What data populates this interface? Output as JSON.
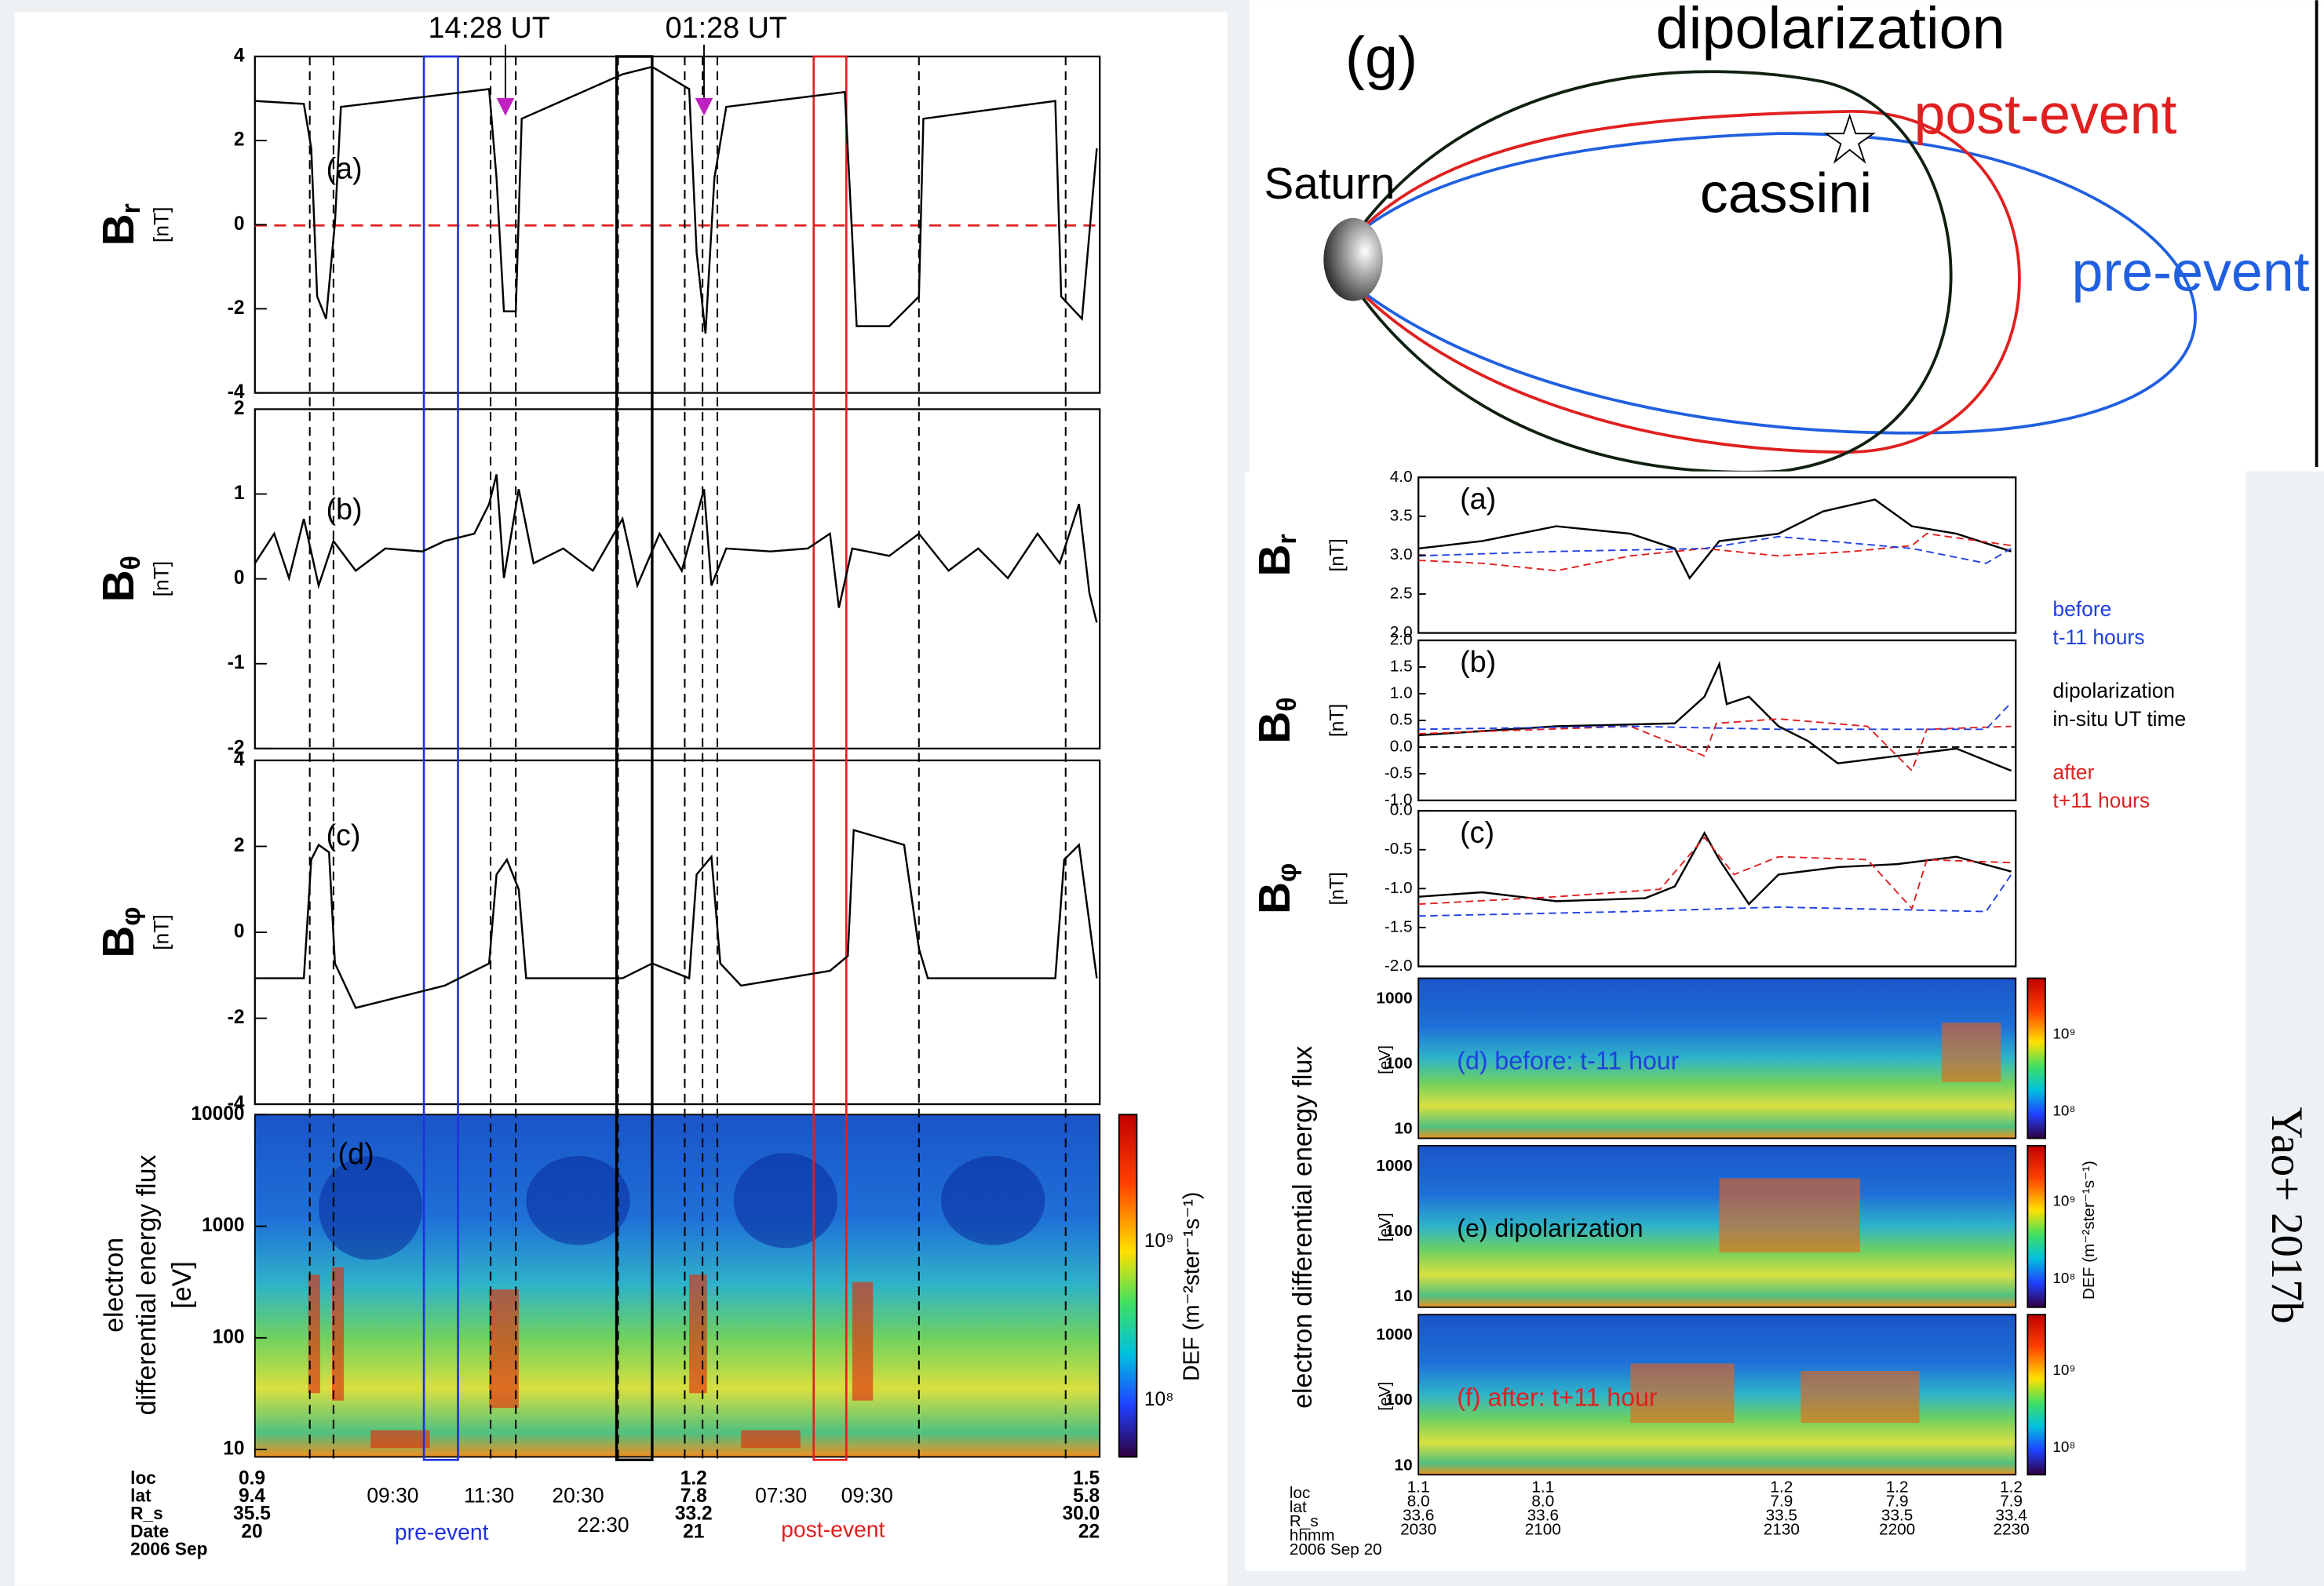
{
  "left_figure": {
    "event_times": [
      "14:28 UT",
      "01:28 UT"
    ],
    "panels": [
      {
        "label": "(a)",
        "ylabel": {
          "symbol": "B",
          "sub": "r",
          "unit": "[nT]"
        },
        "yticks": [
          "4",
          "2",
          "0",
          "-2",
          "-4"
        ]
      },
      {
        "label": "(b)",
        "ylabel": {
          "symbol": "B",
          "sub": "θ",
          "unit": "[nT]"
        },
        "yticks": [
          "2",
          "1",
          "0",
          "-1",
          "-2"
        ]
      },
      {
        "label": "(c)",
        "ylabel": {
          "symbol": "B",
          "sub": "φ",
          "unit": "[nT]"
        },
        "yticks": [
          "4",
          "2",
          "0",
          "-2",
          "-4"
        ]
      },
      {
        "label": "(d)",
        "ylabel": [
          "electron",
          "differential energy flux",
          "[eV]"
        ],
        "yticks": [
          "10000",
          "1000",
          "100",
          "10"
        ]
      }
    ],
    "colorbar": {
      "ticks": [
        "10⁹",
        "10⁸"
      ],
      "label": "DEF (m⁻²ster⁻¹s⁻¹)"
    },
    "axis_rows": [
      "loc",
      "lat",
      "R_s",
      "Date",
      "2006 Sep"
    ],
    "axis_columns": [
      [
        "0.9",
        "9.4",
        "35.5",
        "20"
      ],
      [
        "1.2",
        "7.8",
        "33.2",
        "21"
      ],
      [
        "1.5",
        "5.8",
        "30.0",
        "22"
      ]
    ],
    "window_times": [
      "09:30",
      "11:30",
      "20:30",
      "22:30",
      "07:30",
      "09:30"
    ],
    "window_labels": [
      "pre-event",
      "post-event"
    ]
  },
  "diagram": {
    "label": "(g)",
    "planet": "Saturn",
    "spacecraft": "cassini",
    "curves": [
      "dipolarization",
      "post-event",
      "pre-event"
    ]
  },
  "right_figure": {
    "panels": [
      {
        "label": "(a)",
        "ylabel": {
          "symbol": "B",
          "sub": "r",
          "unit": "[nT]"
        },
        "yticks": [
          "4.0",
          "3.5",
          "3.0",
          "2.5",
          "2.0"
        ]
      },
      {
        "label": "(b)",
        "ylabel": {
          "symbol": "B",
          "sub": "θ",
          "unit": "[nT]"
        },
        "yticks": [
          "2.0",
          "1.5",
          "1.0",
          "0.5",
          "0.0",
          "-0.5",
          "-1.0"
        ]
      },
      {
        "label": "(c)",
        "ylabel": {
          "symbol": "B",
          "sub": "φ",
          "unit": "[nT]"
        },
        "yticks": [
          "0.0",
          "-0.5",
          "-1.0",
          "-1.5",
          "-2.0"
        ]
      }
    ],
    "legend": [
      [
        "before",
        "t-11 hours"
      ],
      [
        "dipolarization",
        "in-situ UT time"
      ],
      [
        "after",
        "t+11 hours"
      ]
    ],
    "spectrograms": [
      {
        "label": "(d) before: t-11 hour",
        "yticks": [
          "1000",
          "100",
          "10"
        ],
        "unit": "[eV]",
        "colorbar_ticks": [
          "10⁹",
          "10⁸"
        ]
      },
      {
        "label": "(e) dipolarization",
        "yticks": [
          "1000",
          "100",
          "10"
        ],
        "unit": "[eV]",
        "colorbar_ticks": [
          "10⁹",
          "10⁸"
        ]
      },
      {
        "label": "(f) after: t+11 hour",
        "yticks": [
          "1000",
          "100",
          "10"
        ],
        "unit": "[eV]",
        "colorbar_ticks": [
          "10⁹",
          "10⁸"
        ]
      }
    ],
    "spectrogram_ylabel": "electron differential energy flux",
    "colorbar_label": "DEF (m⁻²ster⁻¹s⁻¹)",
    "axis_rows": [
      "loc",
      "lat",
      "R_s",
      "hhmm",
      "2006 Sep 20"
    ],
    "axis_columns": [
      [
        "1.1",
        "8.0",
        "33.6",
        "2030"
      ],
      [
        "1.1",
        "8.0",
        "33.6",
        "2100"
      ],
      [
        "1.2",
        "7.9",
        "33.5",
        "2130"
      ],
      [
        "1.2",
        "7.9",
        "33.5",
        "2200"
      ],
      [
        "1.2",
        "7.9",
        "33.4",
        "2230"
      ]
    ]
  },
  "citation": "Yao+ 2017b"
}
